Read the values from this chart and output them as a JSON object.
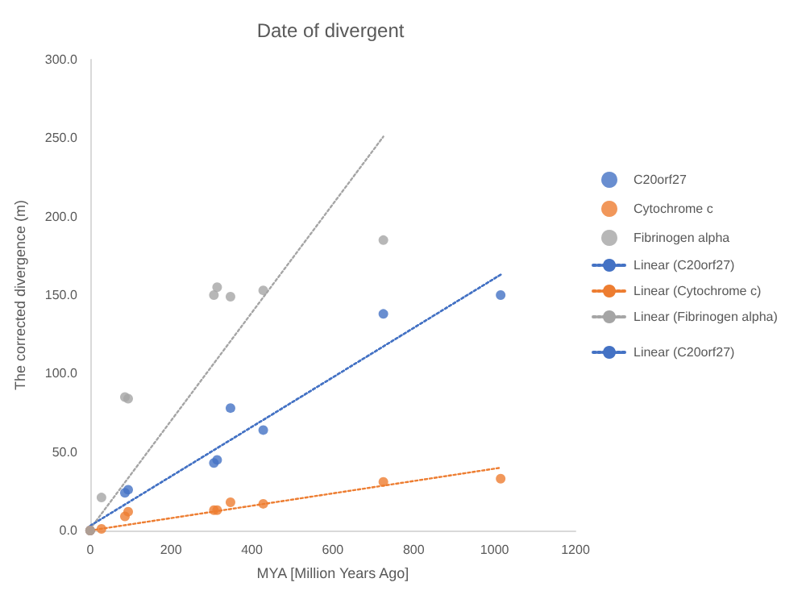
{
  "chart_data": {
    "type": "scatter",
    "title": "Date of divergent",
    "xlabel": "MYA [Million Years Ago]",
    "ylabel": "The corrected divergence (m)",
    "xlim": [
      0,
      1200
    ],
    "xticks": [
      0,
      200,
      400,
      600,
      800,
      1000,
      1200
    ],
    "ylim": [
      0,
      300
    ],
    "yticks": [
      {
        "value": 0,
        "label": "0.0"
      },
      {
        "value": 50,
        "label": "50.0"
      },
      {
        "value": 100,
        "label": "100.0"
      },
      {
        "value": 150,
        "label": "150.0"
      },
      {
        "value": 200,
        "label": "200.0"
      },
      {
        "value": 250,
        "label": "250.0"
      },
      {
        "value": 300,
        "label": "300.0"
      }
    ],
    "grid": false,
    "legend": "right",
    "marker": "circle",
    "series": [
      {
        "name": "C20orf27",
        "color": "#4472c4",
        "x": [
          0,
          86,
          94,
          306,
          314,
          347,
          428,
          725,
          1015
        ],
        "values": [
          0,
          24,
          26,
          43,
          45,
          78,
          64,
          138,
          150
        ]
      },
      {
        "name": "Cytochrome c",
        "color": "#ed7d31",
        "x": [
          0,
          28,
          86,
          94,
          306,
          314,
          347,
          428,
          725,
          1015
        ],
        "values": [
          0,
          1,
          9,
          12,
          13,
          13,
          18,
          17,
          31,
          33
        ]
      },
      {
        "name": "Fibrinogen alpha",
        "color": "#a5a5a5",
        "x": [
          0,
          28,
          86,
          94,
          306,
          314,
          347,
          428,
          725
        ],
        "values": [
          0,
          21,
          85,
          84,
          150,
          155,
          149,
          153,
          185
        ]
      },
      {
        "name": "Linear (C20orf27)",
        "type": "line",
        "marker": "none",
        "line_style": "dotted",
        "color": "#4472c4",
        "x": [
          0,
          1015
        ],
        "values": [
          3,
          163
        ]
      },
      {
        "name": "Linear (Cytochrome c)",
        "type": "line",
        "marker": "none",
        "line_style": "dotted",
        "color": "#ed7d31",
        "x": [
          0,
          1015
        ],
        "values": [
          0,
          40
        ]
      },
      {
        "name": "Linear (Fibrinogen alpha)",
        "type": "line",
        "marker": "none",
        "line_style": "dotted",
        "color": "#a5a5a5",
        "x": [
          0,
          725
        ],
        "values": [
          1,
          251
        ]
      },
      {
        "name": "Linear (C20orf27)",
        "type": "line",
        "marker": "none",
        "line_style": "dotted",
        "color": "#4472c4",
        "x": [
          0,
          1015
        ],
        "values": [
          3,
          163
        ]
      }
    ]
  }
}
